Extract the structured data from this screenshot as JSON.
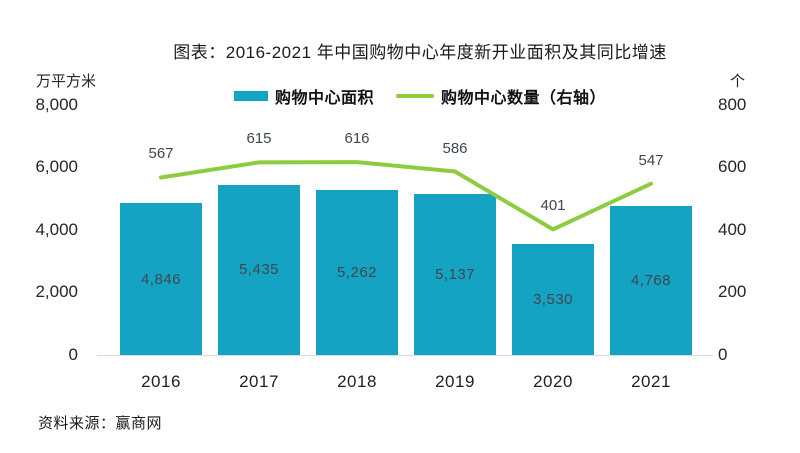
{
  "title": "图表：2016-2021 年中国购物中心年度新开业面积及其同比增速",
  "legend": {
    "items": [
      {
        "label": "购物中心面积",
        "marker": "bar-swatch"
      },
      {
        "label": "购物中心数量（右轴）",
        "marker": "line-swatch"
      }
    ]
  },
  "left_axis": {
    "unit": "万平方米",
    "ticks": [
      "8,000",
      "6,000",
      "4,000",
      "2,000",
      "0"
    ]
  },
  "right_axis": {
    "unit": "个",
    "ticks": [
      "800",
      "600",
      "400",
      "200",
      "0"
    ]
  },
  "source": "资料来源：赢商网",
  "colors": {
    "bar": "#15A3C4",
    "line": "#8DCC41",
    "baseline": "#D9D9D9",
    "data_label": "#3F474F"
  },
  "chart_data": {
    "type": "bar",
    "subtype": "bar-line-combo",
    "title": "图表：2016-2021 年中国购物中心年度新开业面积及其同比增速",
    "categories": [
      "2016",
      "2017",
      "2018",
      "2019",
      "2020",
      "2021"
    ],
    "series": [
      {
        "name": "购物中心面积",
        "type": "bar",
        "axis": "left",
        "values": [
          4846,
          5435,
          5262,
          5137,
          3530,
          4768
        ],
        "labels": [
          "4,846",
          "5,435",
          "5,262",
          "5,137",
          "3,530",
          "4,768"
        ]
      },
      {
        "name": "购物中心数量（右轴）",
        "type": "line",
        "axis": "right",
        "values": [
          567,
          615,
          616,
          586,
          401,
          547
        ],
        "labels": [
          "567",
          "615",
          "616",
          "586",
          "401",
          "547"
        ]
      }
    ],
    "left_ylabel": "万平方米",
    "right_ylabel": "个",
    "left_ylim": [
      0,
      8000
    ],
    "right_ylim": [
      0,
      800
    ],
    "left_tick_step": 2000,
    "right_tick_step": 200,
    "grid": false,
    "legend_position": "top",
    "data_labels": "shown"
  }
}
